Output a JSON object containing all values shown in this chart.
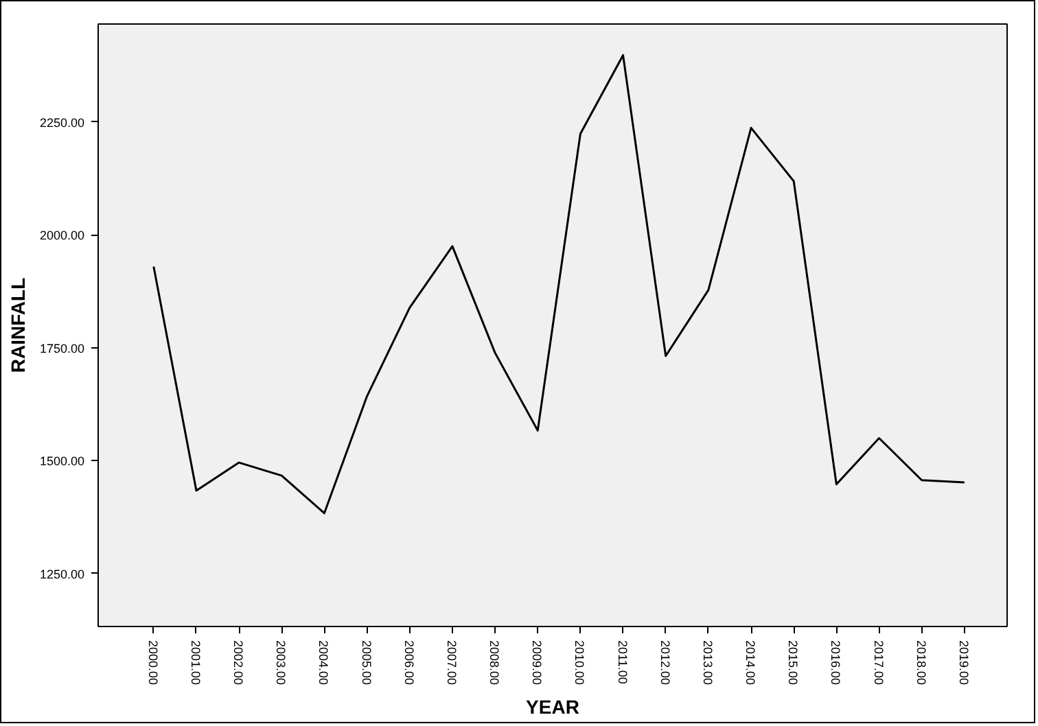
{
  "chart_data": {
    "type": "line",
    "xlabel": "YEAR",
    "ylabel": "RAINFALL",
    "categories": [
      "2000.00",
      "2001.00",
      "2002.00",
      "2003.00",
      "2004.00",
      "2005.00",
      "2006.00",
      "2007.00",
      "2008.00",
      "2009.00",
      "2010.00",
      "2011.00",
      "2012.00",
      "2013.00",
      "2014.00",
      "2015.00",
      "2016.00",
      "2017.00",
      "2018.00",
      "2019.00"
    ],
    "series": [
      {
        "color": "#000000",
        "values": [
          1930,
          1434,
          1496,
          1467,
          1384,
          1643,
          1839,
          1975,
          1739,
          1567,
          2224,
          2398,
          1732,
          1878,
          2237,
          2119,
          1448,
          1550,
          1457,
          1452
        ]
      }
    ],
    "ylim": [
      1133,
      2467
    ],
    "yticks": [
      {
        "value": 1250,
        "label": "1250.00"
      },
      {
        "value": 1500,
        "label": "1500.00"
      },
      {
        "value": 1750,
        "label": "1750.00"
      },
      {
        "value": 2000,
        "label": "2000.00"
      },
      {
        "value": 2250,
        "label": "2250.00"
      }
    ],
    "grid": false,
    "marker": "none",
    "line_style": "solid"
  }
}
